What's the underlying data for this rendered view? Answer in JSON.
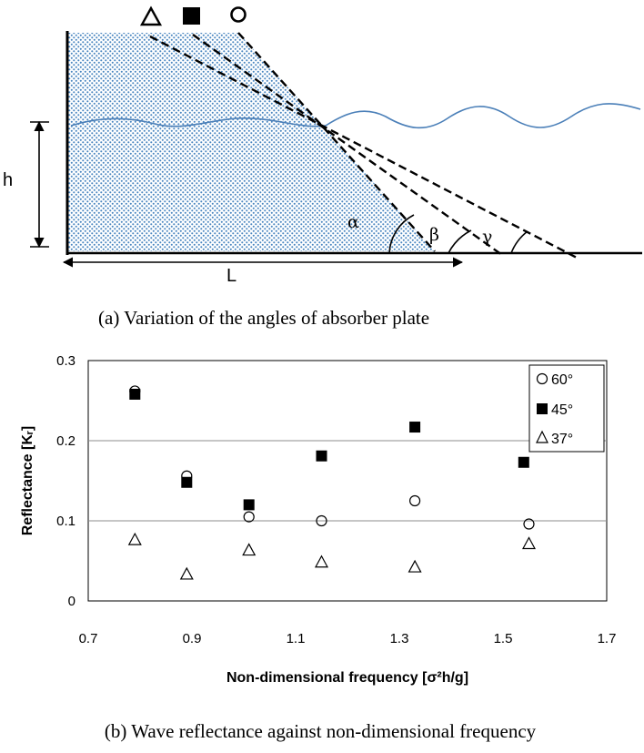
{
  "diagram": {
    "markers": [
      "triangle",
      "square",
      "circle"
    ],
    "h_label": "h",
    "L_label": "L",
    "angle_labels": [
      "α",
      "β",
      "γ"
    ],
    "caption": "(a)   Variation of the angles of absorber plate",
    "colors": {
      "fill_dots": "#4a86c0",
      "wave": "#4a7fb8"
    }
  },
  "chart_data": {
    "type": "scatter",
    "xlabel": "Non-dimensional  frequency  [σ²h/g]",
    "ylabel": "Reflectance  [Kᵣ]",
    "xlim": [
      0.7,
      1.7
    ],
    "ylim": [
      0,
      0.3
    ],
    "xticks": [
      "0.7",
      "0.9",
      "1.1",
      "1.3",
      "1.5",
      "1.7"
    ],
    "yticks": [
      "0",
      "0.1",
      "0.2",
      "0.3"
    ],
    "grid": "horizontal",
    "legend_position": "top-right",
    "series": [
      {
        "name": "60°",
        "marker": "circle-open",
        "x": [
          0.79,
          0.89,
          1.01,
          1.15,
          1.33,
          1.55
        ],
        "y": [
          0.262,
          0.156,
          0.105,
          0.1,
          0.125,
          0.096
        ]
      },
      {
        "name": "45°",
        "marker": "square-filled",
        "x": [
          0.79,
          0.89,
          1.01,
          1.15,
          1.33,
          1.54
        ],
        "y": [
          0.258,
          0.148,
          0.12,
          0.181,
          0.217,
          0.173
        ]
      },
      {
        "name": "37°",
        "marker": "triangle-open",
        "x": [
          0.79,
          0.89,
          1.01,
          1.15,
          1.33,
          1.55
        ],
        "y": [
          0.076,
          0.033,
          0.063,
          0.048,
          0.042,
          0.071
        ]
      }
    ],
    "caption": "(b) Wave reflectance against non-dimensional frequency"
  }
}
